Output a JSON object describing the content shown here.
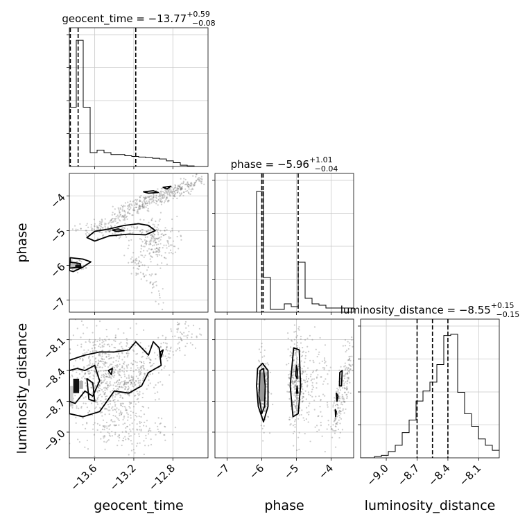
{
  "chart_data": {
    "type": "corner",
    "parameters": [
      "geocent_time",
      "phase",
      "luminosity_distance"
    ],
    "titles": [
      {
        "name": "geocent_time",
        "median": "−13.77",
        "plus": "+0.59",
        "minus": "−0.08"
      },
      {
        "name": "phase",
        "median": "−5.96",
        "plus": "+1.01",
        "minus": "−0.04"
      },
      {
        "name": "luminosity_distance",
        "median": "−8.55",
        "plus": "+0.15",
        "minus": "−0.15"
      }
    ],
    "axis_labels": {
      "x": [
        "geocent_time",
        "phase",
        "luminosity_distance"
      ],
      "y": [
        "phase",
        "luminosity_distance"
      ]
    },
    "ranges": {
      "geocent_time": [
        -13.86,
        -12.44
      ],
      "phase": [
        -7.35,
        -3.35
      ],
      "luminosity_distance": [
        -9.25,
        -7.9
      ]
    },
    "ticks": {
      "geocent_time": [
        -13.6,
        -13.2,
        -12.8
      ],
      "phase": [
        -7,
        -6,
        -5,
        -4
      ],
      "phase_y": [
        -7,
        -6,
        -5,
        -4
      ],
      "luminosity_distance": [
        -9.0,
        -8.7,
        -8.4,
        -8.1
      ]
    },
    "tick_labels": {
      "geocent_time": [
        "−13.6",
        "−13.2",
        "−12.8"
      ],
      "phase": [
        "−7",
        "−6",
        "−5",
        "−4"
      ],
      "luminosity_distance": [
        "−9.0",
        "−8.7",
        "−8.4",
        "−8.1"
      ]
    },
    "histograms": {
      "geocent_time": {
        "bin_start": -13.86,
        "bin_width": 0.071,
        "counts": [
          0.47,
          1.0,
          0.47,
          0.11,
          0.13,
          0.11,
          0.095,
          0.095,
          0.085,
          0.08,
          0.075,
          0.07,
          0.065,
          0.06,
          0.045,
          0.03,
          0.01,
          0.005,
          0.0,
          0.0
        ],
        "ymax": 1.1,
        "quantiles": [
          -13.85,
          -13.77,
          -13.18
        ]
      },
      "phase": {
        "bin_start": -7.35,
        "bin_width": 0.2,
        "counts": [
          0.0,
          0.0,
          0.0,
          0.0,
          0.0,
          0.0,
          0.87,
          0.25,
          0.02,
          0.02,
          0.06,
          0.04,
          0.36,
          0.1,
          0.06,
          0.05,
          0.03,
          0.03,
          0.03,
          0.03
        ],
        "ymax": 1.0,
        "quantiles": [
          -6.0,
          -5.96,
          -4.95
        ]
      },
      "luminosity_distance": {
        "bin_start": -9.25,
        "bin_width": 0.0675,
        "counts": [
          0.0,
          0.0,
          0.01,
          0.02,
          0.05,
          0.1,
          0.2,
          0.3,
          0.45,
          0.53,
          0.6,
          0.74,
          0.97,
          0.98,
          0.52,
          0.35,
          0.25,
          0.15,
          0.1,
          0.06
        ],
        "ymax": 1.1,
        "quantiles": [
          -8.7,
          -8.55,
          -8.4
        ]
      }
    },
    "contour_levels": [
      "0.5σ",
      "1.0σ",
      "1.5σ",
      "2.0σ"
    ],
    "grid": true
  }
}
